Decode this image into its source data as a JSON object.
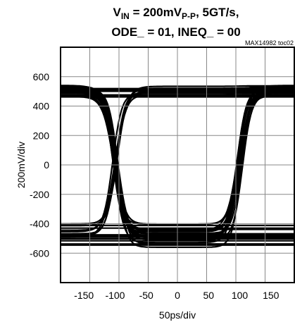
{
  "chart_data": {
    "type": "line",
    "title_parts": [
      "V",
      "IN",
      " = 200mV",
      "P-P",
      ", 5GT/s,"
    ],
    "title_line2": "ODE_ = 01, INEQ_ = 00",
    "annotation": "MAX14982 toc02",
    "xlabel": "50ps/div",
    "ylabel": "200mV/div",
    "x_ticks": [
      "-150",
      "-100",
      "-50",
      "0",
      "50",
      "100",
      "150"
    ],
    "x_tick_values": [
      -150,
      -100,
      -50,
      0,
      50,
      100,
      150
    ],
    "y_ticks": [
      "600",
      "400",
      "200",
      "0",
      "-200",
      "-400",
      "-600"
    ],
    "y_tick_values": [
      600,
      400,
      200,
      0,
      -200,
      -400,
      -600
    ],
    "xlim": [
      -187.5,
      187.5
    ],
    "ylim": [
      -800,
      800
    ],
    "grid": true,
    "eye": {
      "crossing_times": [
        -100,
        100
      ],
      "high_level": [
        460,
        540
      ],
      "low_level": [
        -560,
        -400
      ],
      "peak_high": 540,
      "peak_low": -560
    }
  }
}
